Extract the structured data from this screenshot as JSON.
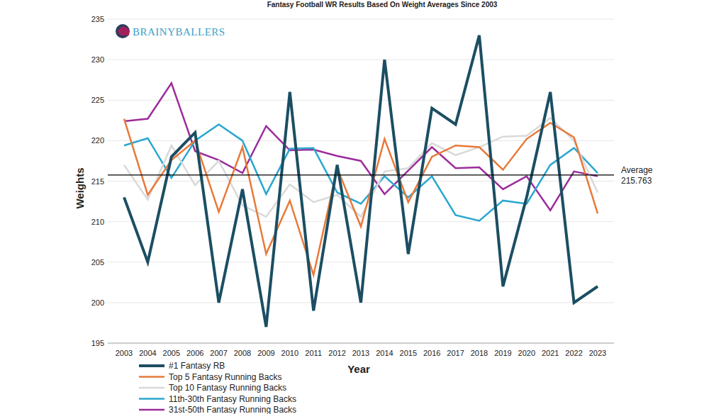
{
  "chart_data": {
    "type": "line",
    "title": "Fantasy Football WR Results Based On Weight Averages Since 2003",
    "logo_text": "BRAINYBALLERS",
    "x_label": "Year",
    "y_label": "Weights",
    "categories": [
      "2003",
      "2004",
      "2005",
      "2006",
      "2007",
      "2008",
      "2009",
      "2010",
      "2011",
      "2012",
      "2013",
      "2014",
      "2015",
      "2016",
      "2017",
      "2018",
      "2019",
      "2020",
      "2021",
      "2022",
      "2023"
    ],
    "series": [
      {
        "name": "#1 Fantasy RB",
        "color": "#1b4e63",
        "values": [
          213,
          205,
          218,
          221,
          200,
          214,
          197,
          226,
          199,
          217,
          200,
          230,
          206,
          224,
          222,
          233,
          202,
          213,
          226,
          200,
          202
        ]
      },
      {
        "name": "Top 5 Fantasy Running Backs",
        "color": "#e8793a",
        "values": [
          222.7,
          213.3,
          217.6,
          220,
          211.2,
          219.2,
          206,
          212.6,
          203.4,
          216.6,
          209.4,
          220.2,
          212.4,
          218,
          219.4,
          219.2,
          216.4,
          220.2,
          222.2,
          220.4,
          211
        ]
      },
      {
        "name": "Top 10 Fantasy Running Backs",
        "color": "#d9d9d9",
        "values": [
          217,
          212.7,
          219.4,
          214.5,
          217.5,
          212,
          210.6,
          214.6,
          212.4,
          213.3,
          210.6,
          216.2,
          216.6,
          219.7,
          218.2,
          219.2,
          220.5,
          220.6,
          222.8,
          220,
          213.6
        ]
      },
      {
        "name": "11th-30th Fantasy Running Backs",
        "color": "#2aa7cf",
        "values": [
          219.4,
          220.3,
          215.4,
          220,
          222,
          220,
          213.4,
          219,
          219.1,
          213.6,
          212.2,
          215.6,
          213,
          215.6,
          210.8,
          210.1,
          212.6,
          212.2,
          217,
          219.1,
          216
        ]
      },
      {
        "name": "31st-50th Fantasy Running Backs",
        "color": "#9c2c9c",
        "values": [
          222.4,
          222.7,
          227.1,
          218.7,
          217.6,
          216,
          221.8,
          218.8,
          218.9,
          218.1,
          217.5,
          213.4,
          216.3,
          219.2,
          216.6,
          216.7,
          214,
          215.6,
          211.4,
          216.2,
          215.6
        ]
      }
    ],
    "reference_line": {
      "label": "Average",
      "value": 215.763
    },
    "ylim": [
      195,
      235
    ],
    "yticks": [
      195,
      200,
      205,
      210,
      215,
      220,
      225,
      230,
      235
    ],
    "grid": true,
    "legend": "bottom"
  }
}
